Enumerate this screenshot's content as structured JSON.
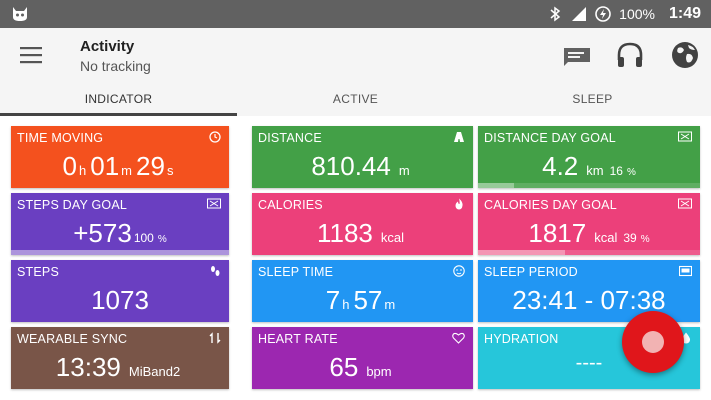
{
  "status_bar": {
    "battery": "100%",
    "time": "1:49",
    "icons": [
      "cat-icon",
      "bluetooth-icon",
      "signal-icon",
      "battery-saver-icon"
    ]
  },
  "header": {
    "title": "Activity",
    "subtitle": "No tracking",
    "icons": [
      "menu-icon",
      "message-icon",
      "headphones-icon",
      "globe-icon"
    ]
  },
  "tabs": [
    {
      "label": "INDICATOR",
      "active": true
    },
    {
      "label": "ACTIVE",
      "active": false
    },
    {
      "label": "SLEEP",
      "active": false
    }
  ],
  "cards": {
    "time_moving": {
      "label": "TIME MOVING",
      "h": "0",
      "h_unit": "h",
      "m": "01",
      "m_unit": "m",
      "s": "29",
      "s_unit": "s",
      "icon": "clock-icon",
      "color": "#f4511e"
    },
    "distance": {
      "label": "DISTANCE",
      "value": "810.44",
      "unit": "m",
      "icon": "road-icon",
      "color": "#43a047"
    },
    "distance_goal": {
      "label": "DISTANCE DAY GOAL",
      "value": "4.2",
      "unit": "km",
      "percent": "16",
      "percent_unit": "%",
      "progress": 0.16,
      "icon": "flag-icon",
      "color": "#43a047"
    },
    "steps_goal": {
      "label": "STEPS DAY GOAL",
      "value": "+573",
      "percent": "100",
      "percent_unit": "%",
      "progress": 1.0,
      "icon": "flag-icon",
      "color": "#6a3fc1"
    },
    "calories": {
      "label": "CALORIES",
      "value": "1183",
      "unit": "kcal",
      "icon": "flame-icon",
      "color": "#ec407a"
    },
    "calories_goal": {
      "label": "CALORIES DAY GOAL",
      "value": "1817",
      "unit": "kcal",
      "percent": "39",
      "percent_unit": "%",
      "progress": 0.39,
      "icon": "flag-icon",
      "color": "#ec407a"
    },
    "steps": {
      "label": "STEPS",
      "value": "1073",
      "icon": "footprints-icon",
      "color": "#6a3fc1"
    },
    "sleep_time": {
      "label": "SLEEP TIME",
      "h": "7",
      "h_unit": "h",
      "m": "57",
      "m_unit": "m",
      "icon": "sleep-face-icon",
      "color": "#2196f3"
    },
    "sleep_period": {
      "label": "SLEEP PERIOD",
      "value": "23:41 - 07:38",
      "icon": "bed-icon",
      "color": "#2196f3"
    },
    "wearable_sync": {
      "label": "WEARABLE SYNC",
      "value": "13:39",
      "device": "MiBand2",
      "icon": "sync-icon",
      "color": "#795548"
    },
    "heart_rate": {
      "label": "HEART RATE",
      "value": "65",
      "unit": "bpm",
      "icon": "heart-icon",
      "color": "#9c27b0"
    },
    "hydration": {
      "label": "HYDRATION",
      "value": "----",
      "icon": "water-drop-icon",
      "color": "#26c6da"
    }
  },
  "fab": {
    "icon": "record-icon",
    "color": "#e0161b"
  }
}
